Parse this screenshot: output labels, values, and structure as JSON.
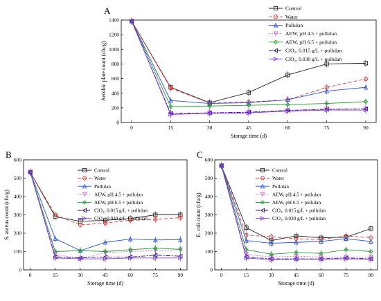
{
  "chart_data": [
    {
      "type": "line",
      "panel_label": "A",
      "ylabel": "Aerobic plate count (cfu/g)",
      "xlabel": "Storage time (d)",
      "x": [
        0,
        15,
        30,
        45,
        60,
        75,
        90
      ],
      "xticks": [
        "0",
        "15",
        "30",
        "45",
        "60",
        "75",
        "90"
      ],
      "yticks": [
        "0",
        "200",
        "400",
        "600",
        "800",
        "1000",
        "1200",
        "1400"
      ],
      "ylim": [
        0,
        1400
      ],
      "xlim": [
        -4,
        94
      ],
      "legend_position": "top-right",
      "series": [
        {
          "name": "Control",
          "values": [
            1385,
            480,
            270,
            410,
            650,
            800,
            810
          ]
        },
        {
          "name": "Water",
          "values": [
            1385,
            470,
            265,
            280,
            310,
            480,
            595
          ]
        },
        {
          "name": "Pullulan",
          "values": [
            1385,
            300,
            260,
            270,
            310,
            430,
            480
          ]
        },
        {
          "name": "AEW, pH 4.5 + pullulan",
          "values": [
            1385,
            115,
            135,
            140,
            165,
            185,
            185
          ]
        },
        {
          "name": "AEW, pH 6.5 + pullulan",
          "values": [
            1385,
            215,
            225,
            235,
            245,
            260,
            285
          ]
        },
        {
          "name": "ClO₂, 0.015 g/L + pullulan",
          "values": [
            1385,
            125,
            130,
            140,
            165,
            180,
            185
          ]
        },
        {
          "name": "ClO₂, 0.030 g/L + pullulan",
          "values": [
            1385,
            110,
            125,
            130,
            155,
            170,
            170
          ]
        }
      ]
    },
    {
      "type": "line",
      "panel_label": "B",
      "ylabel": "S. aureus count (cfu/g)",
      "xlabel": "Storage time (d)",
      "x": [
        0,
        15,
        30,
        45,
        60,
        75,
        90
      ],
      "xticks": [
        "0",
        "15",
        "30",
        "45",
        "60",
        "75",
        "90"
      ],
      "yticks": [
        "0",
        "100",
        "200",
        "300",
        "400",
        "500",
        "600"
      ],
      "ylim": [
        0,
        600
      ],
      "xlim": [
        -4,
        94
      ],
      "legend_position": "top-right",
      "series": [
        {
          "name": "Control",
          "values": [
            533,
            290,
            265,
            270,
            280,
            300,
            300
          ]
        },
        {
          "name": "Water",
          "values": [
            533,
            300,
            245,
            255,
            270,
            275,
            285
          ]
        },
        {
          "name": "Pullulan",
          "values": [
            533,
            170,
            105,
            150,
            168,
            163,
            165
          ]
        },
        {
          "name": "AEW, pH 4.5 + pullulan",
          "values": [
            533,
            85,
            60,
            95,
            100,
            105,
            110
          ]
        },
        {
          "name": "AEW, pH 6.5 + pullulan",
          "values": [
            533,
            100,
            105,
            100,
            110,
            118,
            112
          ]
        },
        {
          "name": "ClO₂, 0.015 g/L + pullulan",
          "values": [
            533,
            70,
            65,
            70,
            70,
            80,
            75
          ]
        },
        {
          "name": "ClO₂, 0.030 g/L + pullulan",
          "values": [
            533,
            65,
            60,
            60,
            65,
            65,
            65
          ]
        }
      ]
    },
    {
      "type": "line",
      "panel_label": "C",
      "ylabel": "E. coli count (cfu/g)",
      "xlabel": "Storage time (d)",
      "x": [
        0,
        15,
        30,
        45,
        60,
        75,
        90
      ],
      "xticks": [
        "0",
        "15",
        "30",
        "45",
        "60",
        "75",
        "90"
      ],
      "yticks": [
        "0",
        "100",
        "200",
        "300",
        "400",
        "500",
        "600"
      ],
      "ylim": [
        0,
        600
      ],
      "xlim": [
        -4,
        94
      ],
      "legend_position": "top-right",
      "series": [
        {
          "name": "Control",
          "values": [
            568,
            230,
            160,
            185,
            175,
            178,
            225
          ]
        },
        {
          "name": "Water",
          "values": [
            568,
            190,
            180,
            170,
            165,
            185,
            175
          ]
        },
        {
          "name": "Pullulan",
          "values": [
            568,
            160,
            145,
            150,
            155,
            170,
            155
          ]
        },
        {
          "name": "AEW, pH 4.5 + pullulan",
          "values": [
            568,
            85,
            70,
            75,
            70,
            70,
            70
          ]
        },
        {
          "name": "AEW, pH 6.5 + pullulan",
          "values": [
            568,
            110,
            85,
            95,
            90,
            110,
            100
          ]
        },
        {
          "name": "ClO₂, 0.015 g/L + pullulan",
          "values": [
            568,
            70,
            60,
            60,
            60,
            65,
            60
          ]
        },
        {
          "name": "ClO₂, 0.030 g/L + pullulan",
          "values": [
            568,
            65,
            55,
            58,
            58,
            60,
            58
          ]
        }
      ]
    }
  ],
  "styles": [
    {
      "color": "#222222",
      "marker": "square",
      "dash": ""
    },
    {
      "color": "#e3342f",
      "marker": "circle",
      "dash": "5,3"
    },
    {
      "color": "#2b4fd8",
      "marker": "triangle-up",
      "dash": ""
    },
    {
      "color": "#d45fe0",
      "marker": "triangle-down",
      "dash": "2,2"
    },
    {
      "color": "#1f9a2a",
      "marker": "diamond",
      "dash": ""
    },
    {
      "color": "#2a0f7a",
      "marker": "triangle-left",
      "dash": "6,2,2,2"
    },
    {
      "color": "#8a3fe0",
      "marker": "triangle-right",
      "dash": ""
    }
  ]
}
